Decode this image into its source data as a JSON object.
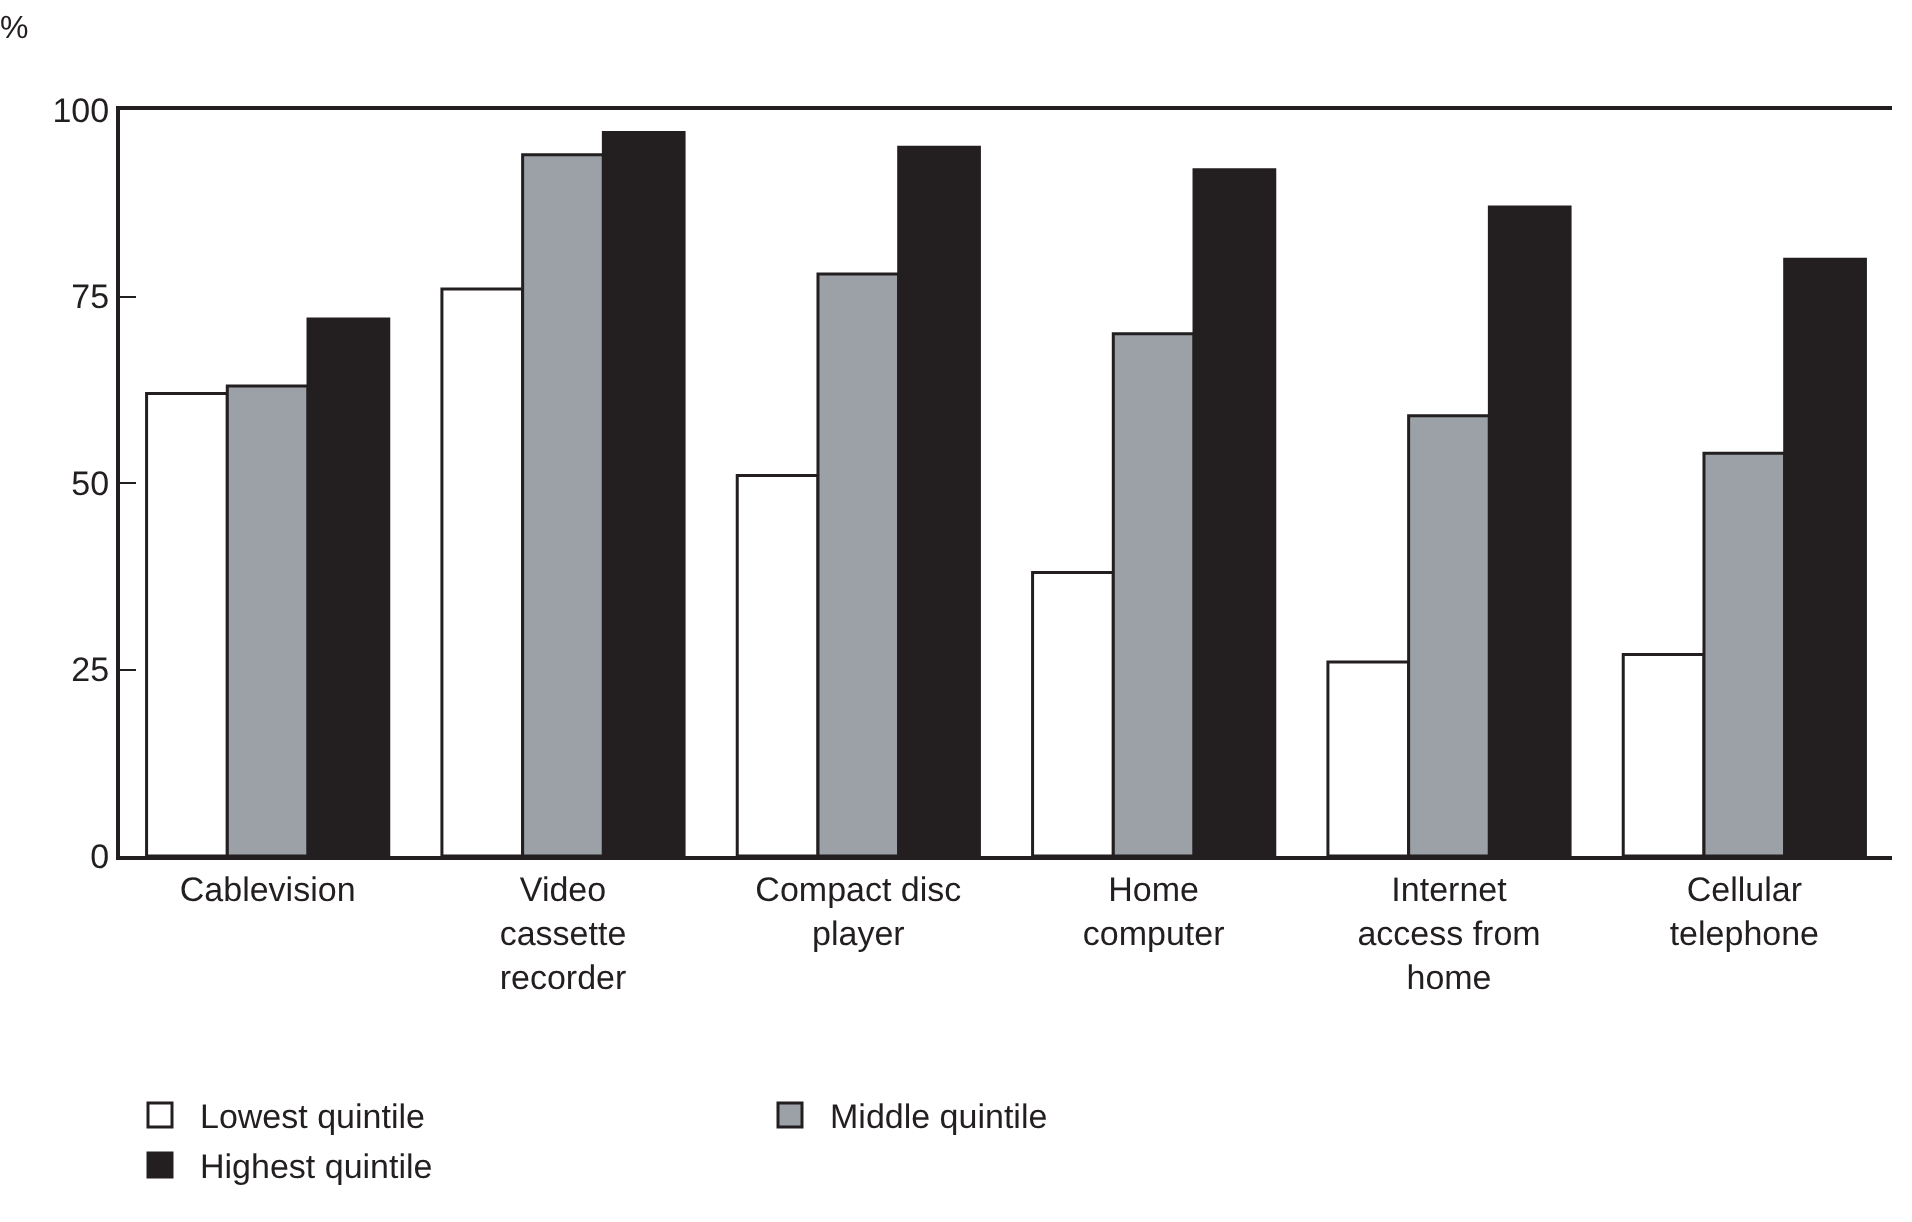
{
  "chart_data": {
    "type": "bar",
    "ylabel": "%",
    "categories": [
      "Cablevision",
      "Video\ncassette\nrecorder",
      "Compact disc\nplayer",
      "Home\ncomputer",
      "Internet\naccess from\nhome",
      "Cellular\ntelephone"
    ],
    "series": [
      {
        "name": "Lowest quintile",
        "color": "#ffffff",
        "values": [
          62,
          76,
          51,
          38,
          26,
          27
        ]
      },
      {
        "name": "Middle quintile",
        "color": "#9ca1a8",
        "values": [
          63,
          94,
          78,
          70,
          59,
          54
        ]
      },
      {
        "name": "Highest quintile",
        "color": "#231f20",
        "values": [
          72,
          97,
          95,
          92,
          87,
          80
        ]
      }
    ],
    "ylim": [
      0,
      100
    ],
    "yticks": [
      0,
      25,
      50,
      75,
      100
    ],
    "legend": "bottom"
  }
}
